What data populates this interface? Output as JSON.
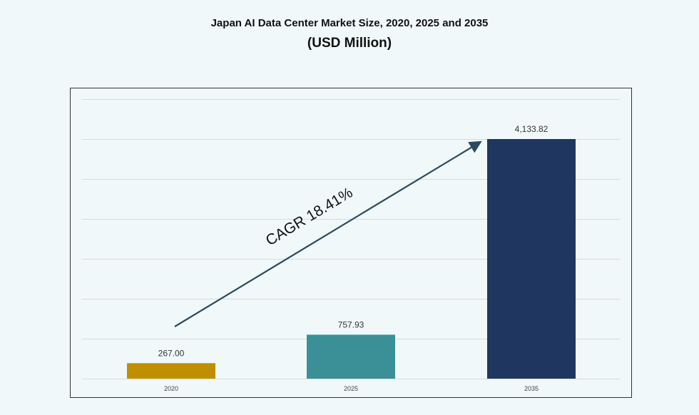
{
  "chart_data": {
    "type": "bar",
    "title": "Japan AI Data Center Market Size, 2020, 2025 and 2035",
    "subtitle": "(USD Million)",
    "categories": [
      "2020",
      "2025",
      "2035"
    ],
    "values": [
      267.0,
      757.93,
      4133.82
    ],
    "data_labels": [
      "267.00",
      "757.93",
      "4,133.82"
    ],
    "colors": [
      "#bf8f00",
      "#3b8f96",
      "#1f3660"
    ],
    "annotation": "CAGR 18.41%",
    "annotation_color": "#2b4a5e",
    "xlabel": "",
    "ylabel": "",
    "grid": true,
    "legend": "none"
  }
}
